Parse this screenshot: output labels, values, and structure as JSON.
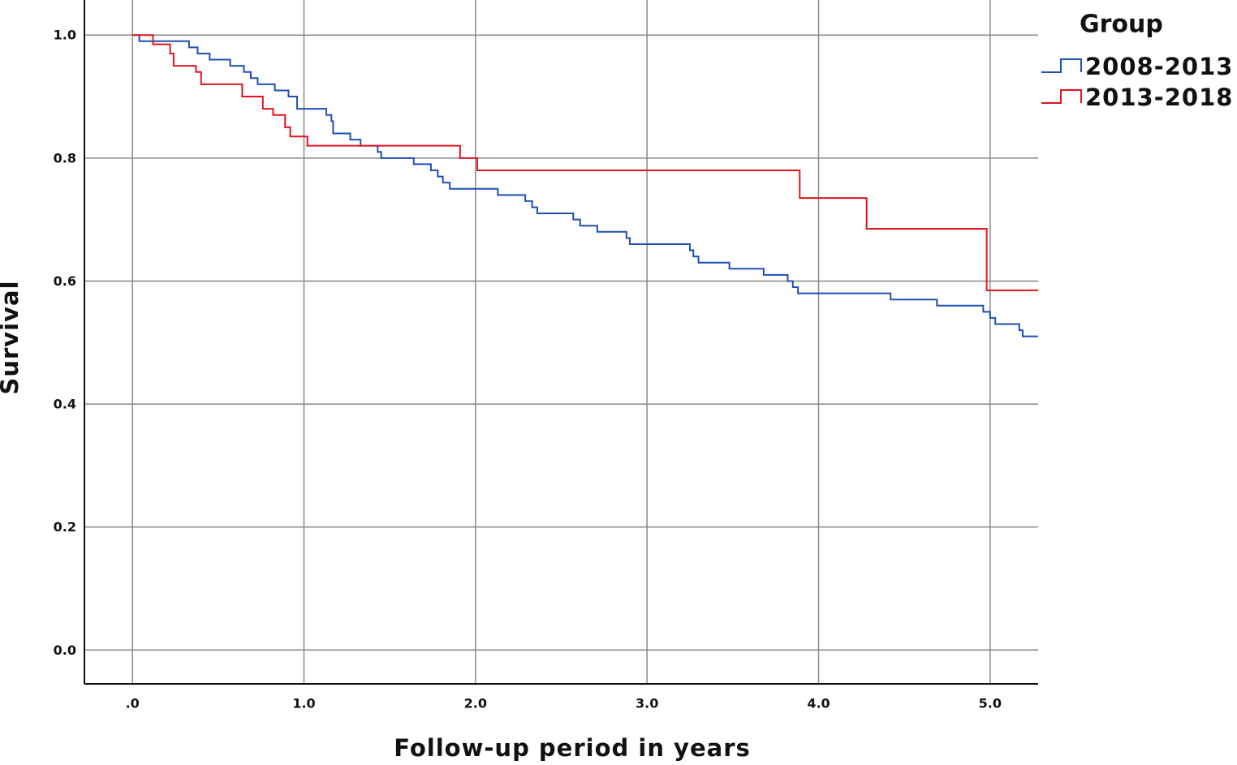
{
  "chart_data": {
    "type": "step",
    "xlabel": "Follow-up period in years",
    "ylabel": "Survival",
    "legend_title": "Group",
    "legend": "right",
    "grid": true,
    "xlim": [
      -0.28,
      5.28
    ],
    "ylim": [
      -0.055,
      1.057
    ],
    "xticks": [
      {
        "value": 0,
        "label": ".0"
      },
      {
        "value": 1,
        "label": "1.0"
      },
      {
        "value": 2,
        "label": "2.0"
      },
      {
        "value": 3,
        "label": "3.0"
      },
      {
        "value": 4,
        "label": "4.0"
      },
      {
        "value": 5,
        "label": "5.0"
      }
    ],
    "yticks": [
      {
        "value": 0,
        "label": "0.0"
      },
      0.2,
      0.4,
      0.6,
      0.8,
      {
        "value": 1,
        "label": "1.0"
      }
    ],
    "series": [
      {
        "name": "2008-2013",
        "color": "#1f4fb5",
        "x": [
          0,
          0.04,
          0.33,
          0.38,
          0.45,
          0.57,
          0.65,
          0.69,
          0.73,
          0.83,
          0.91,
          0.96,
          1.13,
          1.16,
          1.17,
          1.27,
          1.33,
          1.43,
          1.45,
          1.64,
          1.74,
          1.78,
          1.81,
          1.85,
          2.13,
          2.29,
          2.33,
          2.36,
          2.57,
          2.61,
          2.71,
          2.88,
          2.9,
          3.25,
          3.27,
          3.3,
          3.48,
          3.68,
          3.82,
          3.85,
          3.88,
          4.42,
          4.69,
          4.96,
          5.0,
          5.03,
          5.17,
          5.19,
          5.28
        ],
        "values": [
          1.0,
          0.99,
          0.98,
          0.97,
          0.96,
          0.95,
          0.94,
          0.93,
          0.92,
          0.91,
          0.9,
          0.88,
          0.87,
          0.86,
          0.84,
          0.83,
          0.82,
          0.81,
          0.8,
          0.79,
          0.78,
          0.77,
          0.76,
          0.75,
          0.74,
          0.73,
          0.72,
          0.71,
          0.7,
          0.69,
          0.68,
          0.67,
          0.66,
          0.65,
          0.64,
          0.63,
          0.62,
          0.61,
          0.6,
          0.59,
          0.58,
          0.57,
          0.56,
          0.55,
          0.54,
          0.53,
          0.52,
          0.51,
          0.51
        ]
      },
      {
        "name": "2013-2018",
        "color": "#e0141e",
        "x": [
          0,
          0.12,
          0.22,
          0.24,
          0.37,
          0.4,
          0.64,
          0.76,
          0.82,
          0.89,
          0.92,
          1.02,
          1.91,
          2.01,
          3.89,
          4.28,
          4.98,
          5.28
        ],
        "values": [
          1.0,
          0.985,
          0.97,
          0.95,
          0.94,
          0.92,
          0.9,
          0.88,
          0.87,
          0.85,
          0.835,
          0.82,
          0.8,
          0.78,
          0.735,
          0.685,
          0.585,
          0.585
        ]
      }
    ]
  }
}
